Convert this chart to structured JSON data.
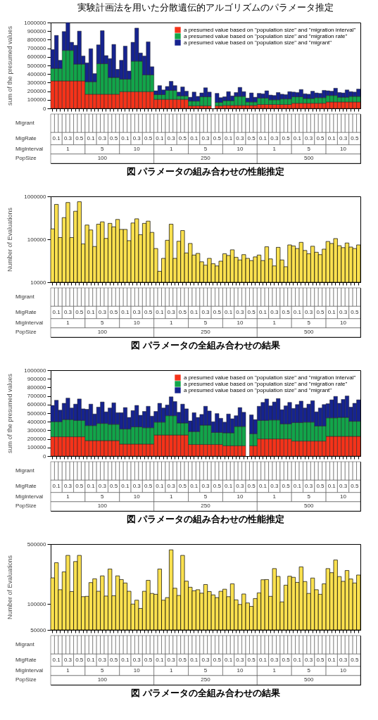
{
  "chart_data": [
    {
      "type": "bar",
      "title": "実験計画法を用いた分散遺伝的アルゴリズムのパラメータ推定",
      "ylabel": "sum of the presumed values",
      "stacked": true,
      "legend": "top right",
      "ylim": [
        0,
        1000000
      ],
      "yticks": [
        0,
        100000,
        200000,
        300000,
        400000,
        500000,
        600000,
        700000,
        800000,
        900000,
        1000000
      ],
      "categories": [
        null,
        null,
        null,
        null,
        null,
        null,
        null,
        null,
        null,
        null,
        null,
        null,
        null,
        null,
        null,
        null,
        null,
        null,
        null,
        null,
        null,
        null,
        null,
        null,
        null,
        null,
        null,
        null,
        null,
        null,
        null,
        null,
        null,
        null,
        null,
        null,
        null,
        null,
        null,
        null,
        null,
        null,
        null,
        null,
        null,
        null,
        null,
        null,
        null,
        null,
        null,
        null,
        null,
        null,
        null,
        null,
        null,
        null,
        null,
        null,
        null,
        null,
        null,
        null,
        null,
        null,
        null,
        null,
        null,
        null,
        null,
        null,
        null,
        null,
        null,
        null,
        null,
        null,
        null,
        null,
        null
      ],
      "series": [
        {
          "name": "a presumed value based on \"population size\" and \"migration interval\"",
          "color": "#f5331a",
          "values": [
            320000,
            320000,
            320000,
            320000,
            320000,
            320000,
            320000,
            320000,
            320000,
            165000,
            165000,
            165000,
            165000,
            165000,
            165000,
            165000,
            165000,
            165000,
            195000,
            195000,
            195000,
            195000,
            195000,
            195000,
            195000,
            195000,
            195000,
            105000,
            105000,
            105000,
            105000,
            105000,
            105000,
            105000,
            105000,
            105000,
            30000,
            30000,
            30000,
            30000,
            30000,
            30000,
            null,
            30000,
            30000,
            35000,
            35000,
            35000,
            35000,
            35000,
            35000,
            35000,
            35000,
            35000,
            45000,
            45000,
            45000,
            45000,
            45000,
            45000,
            45000,
            45000,
            45000,
            60000,
            60000,
            60000,
            60000,
            60000,
            60000,
            60000,
            60000,
            60000,
            75000,
            75000,
            75000,
            75000,
            75000,
            75000,
            75000,
            75000,
            75000
          ]
        },
        {
          "name": "a presumed value based on \"population size\" and \"migration rate\"",
          "color": "#12a54a",
          "values": [
            145000,
            145000,
            145000,
            355000,
            355000,
            355000,
            195000,
            195000,
            195000,
            145000,
            145000,
            145000,
            355000,
            355000,
            355000,
            195000,
            195000,
            195000,
            145000,
            145000,
            145000,
            355000,
            355000,
            355000,
            195000,
            195000,
            195000,
            55000,
            55000,
            55000,
            105000,
            105000,
            105000,
            40000,
            40000,
            40000,
            55000,
            55000,
            55000,
            105000,
            105000,
            105000,
            null,
            40000,
            40000,
            55000,
            55000,
            55000,
            105000,
            105000,
            105000,
            40000,
            40000,
            40000,
            75000,
            75000,
            75000,
            55000,
            55000,
            55000,
            65000,
            65000,
            65000,
            75000,
            75000,
            75000,
            55000,
            55000,
            55000,
            65000,
            65000,
            65000,
            75000,
            75000,
            75000,
            55000,
            55000,
            55000,
            65000,
            65000,
            65000
          ]
        },
        {
          "name": "a presumed value based on \"population size\" and \"migrant\"",
          "color": "#16238f",
          "values": [
            220000,
            385000,
            95000,
            220000,
            325000,
            95000,
            220000,
            385000,
            95000,
            220000,
            385000,
            95000,
            220000,
            385000,
            95000,
            220000,
            385000,
            95000,
            220000,
            385000,
            95000,
            220000,
            385000,
            95000,
            220000,
            385000,
            95000,
            45000,
            105000,
            55000,
            45000,
            105000,
            55000,
            45000,
            105000,
            55000,
            45000,
            105000,
            55000,
            45000,
            105000,
            55000,
            null,
            105000,
            55000,
            45000,
            105000,
            55000,
            45000,
            105000,
            55000,
            45000,
            105000,
            55000,
            55000,
            50000,
            85000,
            55000,
            50000,
            85000,
            55000,
            50000,
            85000,
            55000,
            50000,
            85000,
            55000,
            50000,
            85000,
            55000,
            50000,
            85000,
            55000,
            50000,
            85000,
            55000,
            50000,
            85000,
            55000,
            50000,
            85000
          ]
        }
      ],
      "annotations": [
        "Migrant",
        "MigRate",
        "MigInterval",
        "PopSize",
        "0.1",
        "0.3",
        "0.5",
        "0.1",
        "0.3",
        "0.5",
        "0.1",
        "0.3",
        "0.5",
        "0.1",
        "0.3",
        "0.5",
        "0.1",
        "0.3",
        "0.5",
        "0.1",
        "0.3",
        "0.5",
        "0.1",
        "0.3",
        "0.5",
        "0.1",
        "0.3",
        "0.5",
        "0.1",
        "0.3",
        "0.5",
        "1",
        "5",
        "10",
        "1",
        "5",
        "10",
        "1",
        "5",
        "10",
        "100",
        "250",
        "500",
        "図 パラメータの組み合わせの性能推定"
      ]
    },
    {
      "type": "bar",
      "ylabel": "Number of Evaluations",
      "log": true,
      "color": "#fbe14f",
      "ylim": [
        10000,
        1000000
      ],
      "yticks": [
        10000,
        100000,
        1000000
      ],
      "categories": [
        null,
        null,
        null,
        null,
        null,
        null,
        null,
        null,
        null,
        null,
        null,
        null,
        null,
        null,
        null,
        null,
        null,
        null,
        null,
        null,
        null,
        null,
        null,
        null,
        null,
        null,
        null,
        null,
        null,
        null,
        null,
        null,
        null,
        null,
        null,
        null,
        null,
        null,
        null,
        null,
        null,
        null,
        null,
        null,
        null,
        null,
        null,
        null,
        null,
        null,
        null,
        null,
        null,
        null,
        null,
        null,
        null,
        null,
        null,
        null,
        null,
        null,
        null,
        null,
        null,
        null,
        null,
        null,
        null,
        null,
        null,
        null,
        null,
        null,
        null,
        null,
        null,
        null,
        null,
        null,
        null
      ],
      "values": [
        175000,
        650000,
        110000,
        320000,
        720000,
        110000,
        450000,
        750000,
        78000,
        215000,
        165000,
        68000,
        225000,
        255000,
        105000,
        235000,
        195000,
        290000,
        170000,
        170000,
        93000,
        240000,
        300000,
        128000,
        235000,
        265000,
        145000,
        61000,
        18000,
        36000,
        95000,
        225000,
        36000,
        90000,
        160000,
        48000,
        80000,
        43000,
        47000,
        30000,
        25000,
        36000,
        27000,
        24000,
        31000,
        46000,
        42000,
        57000,
        38000,
        33000,
        44000,
        36000,
        32000,
        39000,
        43000,
        32000,
        67000,
        35000,
        24000,
        65000,
        33000,
        23000,
        74000,
        70000,
        61000,
        85000,
        55000,
        46000,
        69000,
        50000,
        44000,
        59000,
        89000,
        80000,
        104000,
        71000,
        64000,
        82000,
        66000,
        61000,
        74000
      ],
      "annotations": [
        "Migrant",
        "MigRate",
        "MigInterval",
        "PopSize",
        "0.1",
        "0.3",
        "0.5",
        "0.1",
        "0.3",
        "0.5",
        "0.1",
        "0.3",
        "0.5",
        "0.1",
        "0.3",
        "0.5",
        "0.1",
        "0.3",
        "0.5",
        "0.1",
        "0.3",
        "0.5",
        "0.1",
        "0.3",
        "0.5",
        "0.1",
        "0.3",
        "0.5",
        "0.1",
        "0.3",
        "0.5",
        "1",
        "5",
        "10",
        "1",
        "5",
        "10",
        "1",
        "5",
        "10",
        "100",
        "250",
        "500",
        "図 パラメータの全組み合わせの結果"
      ]
    },
    {
      "type": "bar",
      "ylabel": "sum of the presumed values",
      "stacked": true,
      "legend": "top right",
      "ylim": [
        0,
        1000000
      ],
      "yticks": [
        0,
        100000,
        200000,
        300000,
        400000,
        500000,
        600000,
        700000,
        800000,
        900000,
        1000000
      ],
      "categories": [
        null,
        null,
        null,
        null,
        null,
        null,
        null,
        null,
        null,
        null,
        null,
        null,
        null,
        null,
        null,
        null,
        null,
        null,
        null,
        null,
        null,
        null,
        null,
        null,
        null,
        null,
        null,
        null,
        null,
        null,
        null,
        null,
        null,
        null,
        null,
        null,
        null,
        null,
        null,
        null,
        null,
        null,
        null,
        null,
        null,
        null,
        null,
        null,
        null,
        null,
        null,
        null,
        null,
        null,
        null,
        null,
        null,
        null,
        null,
        null,
        null,
        null,
        null,
        null,
        null,
        null,
        null,
        null,
        null,
        null,
        null,
        null,
        null,
        null,
        null,
        null,
        null,
        null,
        null,
        null,
        null
      ],
      "series": [
        {
          "name": "a presumed value based on \"population size\" and \"migration interval\"",
          "color": "#f5331a",
          "values": [
            225000,
            225000,
            225000,
            225000,
            225000,
            225000,
            225000,
            225000,
            225000,
            180000,
            180000,
            180000,
            180000,
            180000,
            180000,
            180000,
            180000,
            180000,
            140000,
            140000,
            140000,
            140000,
            140000,
            140000,
            140000,
            140000,
            140000,
            245000,
            245000,
            245000,
            245000,
            245000,
            245000,
            245000,
            245000,
            245000,
            135000,
            135000,
            135000,
            135000,
            135000,
            135000,
            135000,
            135000,
            135000,
            120000,
            120000,
            120000,
            120000,
            120000,
            120000,
            null,
            120000,
            120000,
            200000,
            200000,
            200000,
            200000,
            200000,
            200000,
            200000,
            200000,
            200000,
            175000,
            175000,
            175000,
            175000,
            175000,
            175000,
            175000,
            175000,
            175000,
            230000,
            230000,
            230000,
            230000,
            230000,
            230000,
            230000,
            230000,
            230000
          ]
        },
        {
          "name": "a presumed value based on \"population size\" and \"migration rate\"",
          "color": "#12a54a",
          "values": [
            175000,
            175000,
            175000,
            200000,
            200000,
            200000,
            190000,
            190000,
            190000,
            175000,
            175000,
            175000,
            200000,
            200000,
            200000,
            190000,
            190000,
            190000,
            175000,
            175000,
            175000,
            200000,
            200000,
            200000,
            190000,
            190000,
            190000,
            150000,
            150000,
            150000,
            225000,
            225000,
            225000,
            140000,
            140000,
            140000,
            150000,
            150000,
            150000,
            225000,
            225000,
            225000,
            140000,
            140000,
            140000,
            150000,
            150000,
            150000,
            225000,
            225000,
            225000,
            null,
            140000,
            140000,
            215000,
            215000,
            215000,
            220000,
            220000,
            220000,
            175000,
            175000,
            175000,
            215000,
            215000,
            215000,
            220000,
            220000,
            220000,
            175000,
            175000,
            175000,
            215000,
            215000,
            215000,
            220000,
            220000,
            220000,
            175000,
            175000,
            175000
          ]
        },
        {
          "name": "a presumed value based on \"population size\" and \"migrant\"",
          "color": "#16238f",
          "values": [
            190000,
            250000,
            135000,
            190000,
            250000,
            135000,
            190000,
            250000,
            135000,
            190000,
            250000,
            135000,
            190000,
            250000,
            135000,
            190000,
            250000,
            135000,
            190000,
            250000,
            135000,
            190000,
            250000,
            135000,
            190000,
            250000,
            135000,
            125000,
            220000,
            165000,
            125000,
            220000,
            165000,
            125000,
            220000,
            165000,
            125000,
            220000,
            165000,
            125000,
            220000,
            165000,
            125000,
            220000,
            165000,
            125000,
            220000,
            165000,
            125000,
            220000,
            165000,
            null,
            220000,
            165000,
            165000,
            210000,
            250000,
            165000,
            210000,
            250000,
            165000,
            210000,
            250000,
            165000,
            210000,
            250000,
            165000,
            210000,
            250000,
            165000,
            210000,
            250000,
            165000,
            210000,
            250000,
            165000,
            210000,
            250000,
            165000,
            210000,
            250000
          ]
        }
      ],
      "annotations": [
        "Migrant",
        "MigRate",
        "MigInterval",
        "PopSize",
        "0.1",
        "0.3",
        "0.5",
        "0.1",
        "0.3",
        "0.5",
        "0.1",
        "0.3",
        "0.5",
        "0.1",
        "0.3",
        "0.5",
        "0.1",
        "0.3",
        "0.5",
        "0.1",
        "0.3",
        "0.5",
        "0.1",
        "0.3",
        "0.5",
        "0.1",
        "0.3",
        "0.5",
        "0.1",
        "0.3",
        "0.5",
        "1",
        "5",
        "10",
        "1",
        "5",
        "10",
        "1",
        "5",
        "10",
        "100",
        "250",
        "500",
        "図 パラメータの組み合わせの性能推定"
      ]
    },
    {
      "type": "bar",
      "ylabel": "Number of Evaluations",
      "log": true,
      "color": "#fbe14f",
      "ylim": [
        50000,
        500000
      ],
      "yticks": [
        50000,
        100000,
        500000
      ],
      "categories": [
        null,
        null,
        null,
        null,
        null,
        null,
        null,
        null,
        null,
        null,
        null,
        null,
        null,
        null,
        null,
        null,
        null,
        null,
        null,
        null,
        null,
        null,
        null,
        null,
        null,
        null,
        null,
        null,
        null,
        null,
        null,
        null,
        null,
        null,
        null,
        null,
        null,
        null,
        null,
        null,
        null,
        null,
        null,
        null,
        null,
        null,
        null,
        null,
        null,
        null,
        null,
        null,
        null,
        null,
        null,
        null,
        null,
        null,
        null,
        null,
        null,
        null,
        null,
        null,
        null,
        null,
        null,
        null,
        null,
        null,
        null,
        null,
        null,
        null,
        null,
        null,
        null,
        null,
        null,
        null,
        null
      ],
      "values": [
        202000,
        303000,
        147000,
        237000,
        369000,
        140000,
        313000,
        369000,
        122000,
        123000,
        178000,
        197000,
        141000,
        213000,
        124000,
        256000,
        125000,
        213000,
        193000,
        176000,
        141000,
        100000,
        111000,
        89000,
        141000,
        189000,
        133000,
        130000,
        256000,
        111000,
        119000,
        428000,
        153000,
        126000,
        369000,
        185000,
        157000,
        143000,
        147000,
        134000,
        169000,
        140000,
        128000,
        119000,
        141000,
        149000,
        122000,
        172000,
        112000,
        99000,
        131000,
        103000,
        94000,
        116000,
        135000,
        192000,
        193000,
        123000,
        259000,
        210000,
        106000,
        166000,
        211000,
        205000,
        179000,
        271000,
        183000,
        133000,
        201000,
        147000,
        130000,
        172000,
        259000,
        232000,
        326000,
        209000,
        184000,
        246000,
        196000,
        176000,
        218000
      ],
      "annotations": [
        "Migrant",
        "MigRate",
        "MigInterval",
        "PopSize",
        "0.1",
        "0.3",
        "0.5",
        "0.1",
        "0.3",
        "0.5",
        "0.1",
        "0.3",
        "0.5",
        "0.1",
        "0.3",
        "0.5",
        "0.1",
        "0.3",
        "0.5",
        "0.1",
        "0.3",
        "0.5",
        "0.1",
        "0.3",
        "0.5",
        "0.1",
        "0.3",
        "0.5",
        "0.1",
        "0.3",
        "0.5",
        "1",
        "5",
        "10",
        "1",
        "5",
        "10",
        "1",
        "5",
        "10",
        "100",
        "250",
        "500",
        "図 パラメータの全組み合わせの結果"
      ]
    }
  ]
}
